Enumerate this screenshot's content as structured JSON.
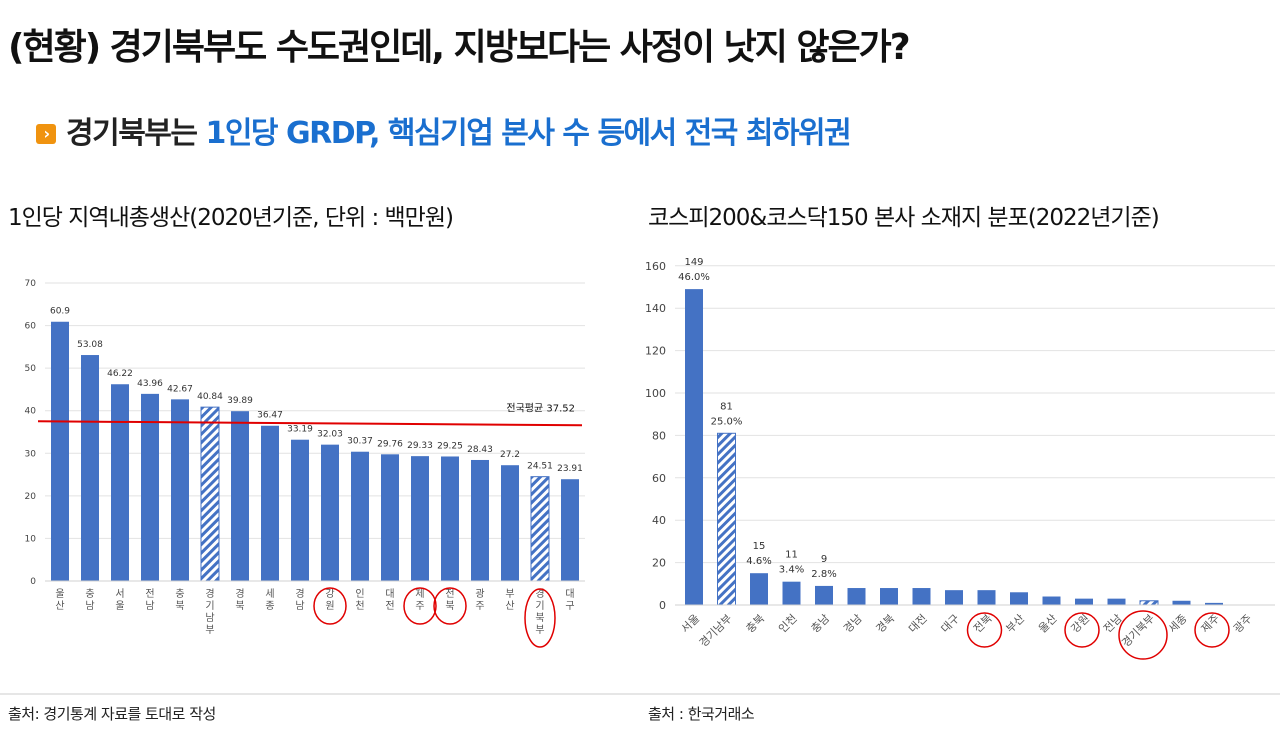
{
  "header": {
    "title": "(현황) 경기북부도 수도권인데, 지방보다는 사정이 낫지 않은가?",
    "subtitle_bullet_icon": "chevron-right-icon",
    "subtitle_dark": "경기북부는 ",
    "subtitle_blue": "1인당 GRDP, 핵심기업 본사 수 등에서 전국 최하위권"
  },
  "colors": {
    "bar": "#4472c4",
    "average_line": "#e00000",
    "highlight_circle": "#e00000",
    "subtitle_accent": "#1a6fcf",
    "bullet": "#f0930f"
  },
  "footer": {
    "left_source": "출처: 경기통계 자료를 토대로 작성",
    "right_source": "출처 : 한국거래소"
  },
  "chart_data": [
    {
      "type": "bar",
      "title": "1인당 지역내총생산(2020년기준, 단위 : 백만원)",
      "xlabel": "",
      "ylabel": "",
      "ylim": [
        0,
        70
      ],
      "yticks": [
        0,
        10,
        20,
        30,
        40,
        50,
        60,
        70
      ],
      "grid": true,
      "categories": [
        "울산",
        "충남",
        "서울",
        "전남",
        "충북",
        "경기남부",
        "경북",
        "세종",
        "경남",
        "강원",
        "인천",
        "대전",
        "제주",
        "전북",
        "광주",
        "부산",
        "경기북부",
        "대구"
      ],
      "values": [
        60.9,
        53.08,
        46.22,
        43.96,
        42.67,
        40.84,
        39.89,
        36.47,
        33.19,
        32.03,
        30.37,
        29.76,
        29.33,
        29.25,
        28.43,
        27.2,
        24.51,
        23.91
      ],
      "labels": [
        "60.9",
        "53.08",
        "46.22",
        "43.96",
        "42.67",
        "40.84",
        "39.89",
        "36.47",
        "33.19",
        "32.03",
        "30.37",
        "29.76",
        "29.33",
        "29.25",
        "28.43",
        "27.2",
        "24.51",
        "23.91"
      ],
      "hatched": [
        "경기남부",
        "경기북부"
      ],
      "circled": [
        "강원",
        "제주",
        "전북",
        "경기북부"
      ],
      "reference_line": {
        "label": "전국평균 37.52",
        "value": 37.52
      }
    },
    {
      "type": "bar",
      "title": "코스피200&코스닥150 본사 소재지 분포(2022년기준)",
      "xlabel": "",
      "ylabel": "",
      "ylim": [
        0,
        160
      ],
      "yticks": [
        0,
        20,
        40,
        60,
        80,
        100,
        120,
        140,
        160
      ],
      "grid": true,
      "categories": [
        "서울",
        "경기남부",
        "충북",
        "인천",
        "충남",
        "경남",
        "경북",
        "대전",
        "대구",
        "전북",
        "부산",
        "울산",
        "강원",
        "전남",
        "경기북부",
        "세종",
        "제주",
        "광주"
      ],
      "values": [
        149,
        81,
        15,
        11,
        9,
        8,
        8,
        8,
        7,
        7,
        6,
        4,
        3,
        3,
        2,
        2,
        1,
        0
      ],
      "labels": [
        "149",
        "81",
        "15",
        "11",
        "9",
        "",
        "",
        "",
        "",
        "",
        "",
        "",
        "",
        "",
        "",
        "",
        "",
        ""
      ],
      "pct_labels": [
        "46.0%",
        "25.0%",
        "4.6%",
        "3.4%",
        "2.8%",
        "",
        "",
        "",
        "",
        "",
        "",
        "",
        "",
        "",
        "",
        "",
        "",
        ""
      ],
      "hatched": [
        "경기남부",
        "경기북부"
      ],
      "circled": [
        "전북",
        "강원",
        "경기북부",
        "제주"
      ]
    }
  ]
}
